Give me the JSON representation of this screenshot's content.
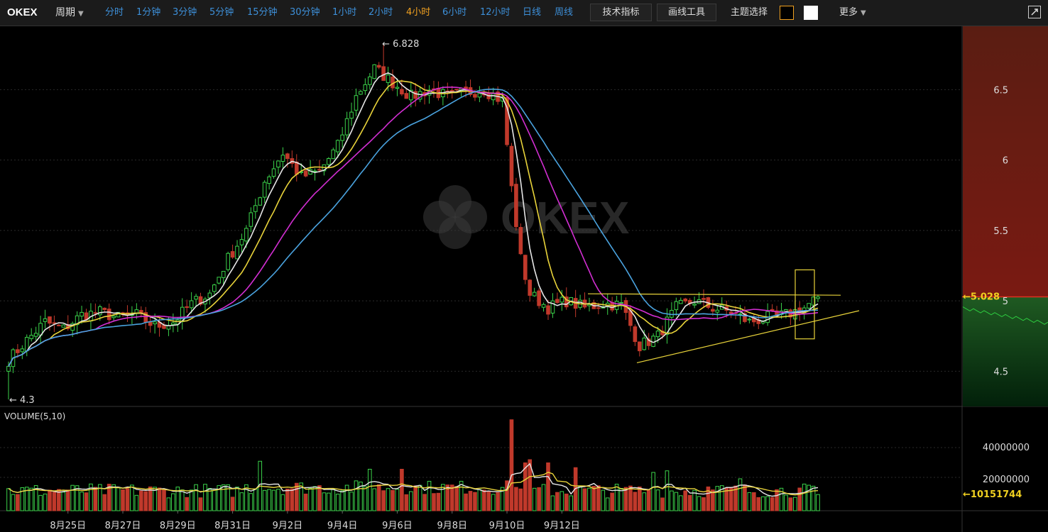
{
  "toolbar": {
    "brand": "OKEX",
    "period_label": "周期",
    "intervals": [
      "分时",
      "1分钟",
      "3分钟",
      "5分钟",
      "15分钟",
      "30分钟",
      "1小时",
      "2小时",
      "4小时",
      "6小时",
      "12小时",
      "日线",
      "周线"
    ],
    "active_interval": "4小时",
    "indicator_btn": "技术指标",
    "drawing_btn": "画线工具",
    "theme_label": "主题选择",
    "more_label": "更多"
  },
  "chart_data": {
    "type": "candlestick",
    "watermark": "OKEX",
    "price_axis": {
      "ticks": [
        6.5,
        6,
        5.5,
        5,
        4.5
      ],
      "range": [
        4.25,
        6.95
      ]
    },
    "x_labels": [
      "8月25日",
      "8月27日",
      "8月29日",
      "8月31日",
      "9月2日",
      "9月4日",
      "9月6日",
      "9月8日",
      "9月10日",
      "9月12日"
    ],
    "high_marker": "← 6.828",
    "low_marker": "← 4.3",
    "current_price": "5.028",
    "ma_colors": {
      "ma1": "#e6e6e6",
      "ma2": "#e8d33a",
      "ma3": "#d22ed2",
      "ma4": "#4aa3df"
    },
    "up_color": "#3bd24a",
    "down_color": "#c0392b",
    "price_anchors": [
      [
        0,
        4.58
      ],
      [
        4,
        4.72
      ],
      [
        8,
        4.85
      ],
      [
        12,
        4.8
      ],
      [
        16,
        4.9
      ],
      [
        20,
        4.92
      ],
      [
        24,
        4.88
      ],
      [
        28,
        4.9
      ],
      [
        32,
        4.82
      ],
      [
        36,
        4.85
      ],
      [
        40,
        4.98
      ],
      [
        44,
        5.05
      ],
      [
        48,
        5.3
      ],
      [
        52,
        5.5
      ],
      [
        56,
        5.85
      ],
      [
        60,
        6.05
      ],
      [
        64,
        5.88
      ],
      [
        68,
        5.92
      ],
      [
        72,
        6.1
      ],
      [
        76,
        6.45
      ],
      [
        80,
        6.65
      ],
      [
        84,
        6.55
      ],
      [
        88,
        6.45
      ],
      [
        92,
        6.5
      ],
      [
        96,
        6.45
      ],
      [
        100,
        6.48
      ],
      [
        104,
        6.5
      ],
      [
        108,
        6.42
      ],
      [
        110,
        5.8
      ],
      [
        112,
        5.3
      ],
      [
        114,
        5.05
      ],
      [
        118,
        4.95
      ],
      [
        122,
        5.0
      ],
      [
        126,
        4.95
      ],
      [
        130,
        4.98
      ],
      [
        134,
        4.97
      ],
      [
        138,
        4.68
      ],
      [
        142,
        4.75
      ],
      [
        146,
        4.95
      ],
      [
        150,
        5.0
      ],
      [
        154,
        4.95
      ],
      [
        158,
        4.92
      ],
      [
        162,
        4.85
      ],
      [
        166,
        4.88
      ],
      [
        170,
        4.9
      ],
      [
        174,
        4.95
      ],
      [
        177,
        5.03
      ]
    ],
    "volume": {
      "title": "VOLUME(5,10)",
      "ticks": [
        40000000,
        20000000
      ],
      "ticks_text": [
        "40000000",
        "20000000"
      ],
      "current": "10151744",
      "max": 60000000,
      "spikes": [
        [
          55,
          31000000
        ],
        [
          79,
          26000000
        ],
        [
          86,
          26000000
        ],
        [
          110,
          57000000
        ],
        [
          113,
          30000000
        ],
        [
          114,
          32000000
        ],
        [
          118,
          30000000
        ],
        [
          124,
          27000000
        ],
        [
          141,
          24000000
        ],
        [
          144,
          25000000
        ],
        [
          160,
          20000000
        ]
      ]
    }
  }
}
